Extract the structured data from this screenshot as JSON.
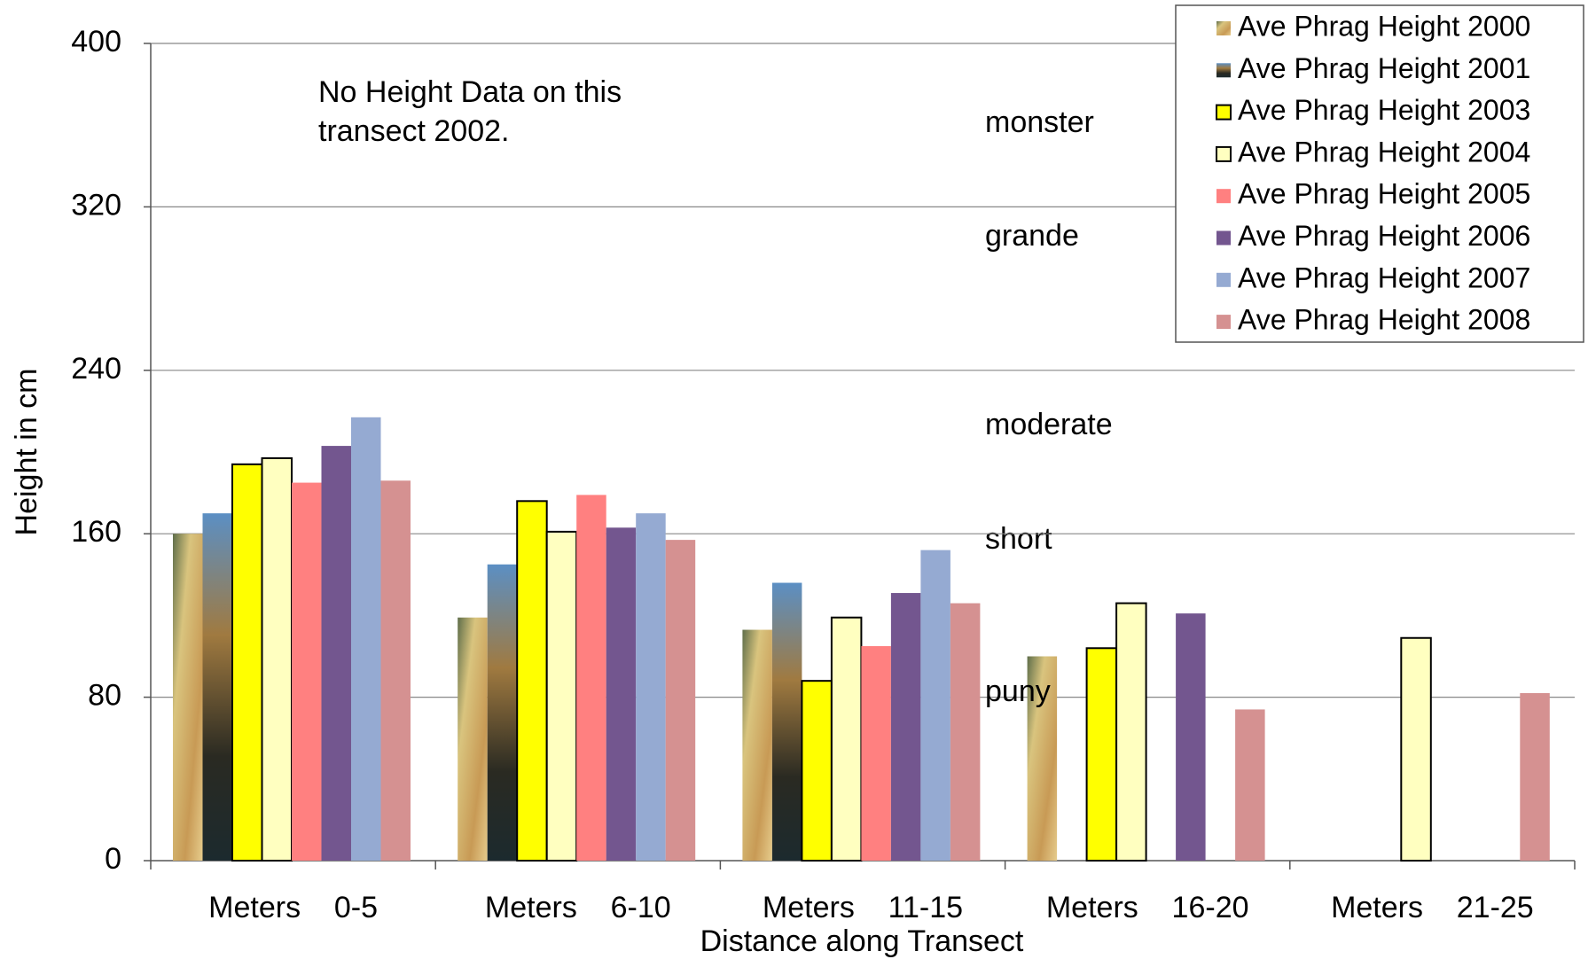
{
  "chart_data": {
    "type": "bar",
    "x_label": "Distance along Transect",
    "y_label": "Height in cm",
    "annotations": [
      "No Height Data on this",
      "transect 2002.",
      "monster",
      "grande",
      "moderate",
      "short",
      "puny"
    ],
    "categories": [
      "Meters    0-5",
      "Meters    6-10",
      "Meters    11-15",
      "Meters    16-20",
      "Meters    21-25"
    ],
    "series": [
      {
        "name": "Ave Phrag Height 2000",
        "color": "#c9a65c",
        "values": [
          160,
          119,
          113,
          100,
          null
        ]
      },
      {
        "name": "Ave Phrag Height 2001",
        "color": "#2f3a36",
        "values": [
          170,
          145,
          136,
          null,
          null
        ]
      },
      {
        "name": "Ave Phrag Height 2003",
        "color": "#ffff00",
        "edgecolor": "#000000",
        "values": [
          194,
          176,
          88,
          104,
          null
        ]
      },
      {
        "name": "Ave Phrag Height 2004",
        "color": "#ffffc0",
        "edgecolor": "#000000",
        "values": [
          197,
          161,
          119,
          126,
          109
        ]
      },
      {
        "name": "Ave Phrag Height 2005",
        "color": "#ff8080",
        "values": [
          185,
          179,
          105,
          null,
          null
        ]
      },
      {
        "name": "Ave Phrag Height 2006",
        "color": "#73568f",
        "values": [
          203,
          163,
          131,
          121,
          null
        ]
      },
      {
        "name": "Ave Phrag Height 2007",
        "color": "#95aad2",
        "values": [
          217,
          170,
          152,
          null,
          null
        ]
      },
      {
        "name": "Ave Phrag Height 2008",
        "color": "#d59191",
        "values": [
          186,
          157,
          126,
          74,
          82
        ]
      }
    ],
    "ylim": [
      0,
      400
    ],
    "yticks": [
      0,
      80,
      160,
      240,
      320,
      400
    ],
    "grid": true,
    "legend": "upper right"
  }
}
